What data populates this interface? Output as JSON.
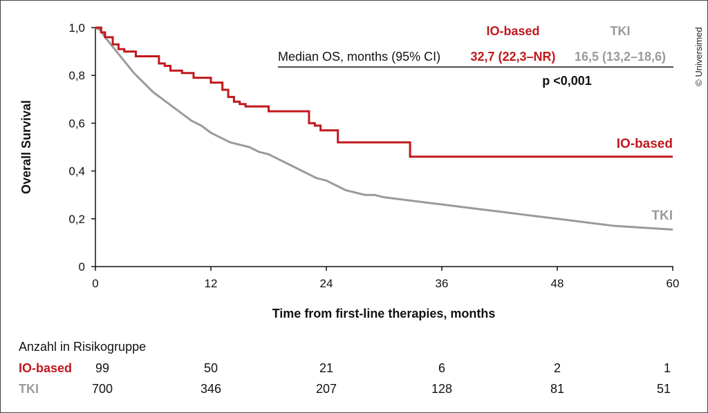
{
  "chart_data": {
    "type": "line",
    "subtype": "kaplan-meier",
    "xlabel": "Time from first-line therapies, months",
    "ylabel": "Overall Survival",
    "xlim": [
      0,
      60
    ],
    "ylim": [
      0,
      1
    ],
    "x_ticks": [
      0,
      12,
      24,
      36,
      48,
      60
    ],
    "x_tick_labels": [
      "0",
      "12",
      "24",
      "36",
      "48",
      "60"
    ],
    "y_ticks": [
      0,
      0.2,
      0.4,
      0.6,
      0.8,
      1.0
    ],
    "y_tick_labels": [
      "0",
      "0,2",
      "0,4",
      "0,6",
      "0,8",
      "1,0"
    ],
    "grid": false,
    "colors": {
      "io": "#c0181d",
      "tki": "#9a9a9a"
    },
    "series": [
      {
        "name": "IO-based",
        "step": true,
        "x": [
          0,
          0.6,
          1.0,
          1.8,
          2.4,
          3.0,
          4.2,
          6.6,
          7.2,
          7.8,
          9.0,
          10.2,
          12.0,
          13.2,
          13.8,
          14.4,
          15.0,
          15.6,
          18.0,
          22.2,
          22.8,
          23.4,
          25.2,
          32.7,
          60
        ],
        "y": [
          1.0,
          0.98,
          0.96,
          0.93,
          0.91,
          0.9,
          0.88,
          0.85,
          0.84,
          0.82,
          0.81,
          0.79,
          0.77,
          0.74,
          0.71,
          0.69,
          0.68,
          0.67,
          0.65,
          0.6,
          0.59,
          0.57,
          0.52,
          0.46,
          0.46
        ]
      },
      {
        "name": "TKI",
        "step": false,
        "x": [
          0,
          0.5,
          1,
          2,
          3,
          4,
          5,
          6,
          7,
          8,
          9,
          10,
          11,
          12,
          13,
          14,
          15,
          16,
          17,
          18,
          19,
          20,
          21,
          22,
          23,
          24,
          25,
          26,
          27,
          28,
          29,
          30,
          32,
          34,
          36,
          38,
          40,
          42,
          44,
          46,
          48,
          50,
          52,
          54,
          56,
          58,
          60
        ],
        "y": [
          1.0,
          0.99,
          0.96,
          0.91,
          0.86,
          0.81,
          0.77,
          0.73,
          0.7,
          0.67,
          0.64,
          0.61,
          0.59,
          0.56,
          0.54,
          0.52,
          0.51,
          0.5,
          0.48,
          0.47,
          0.45,
          0.43,
          0.41,
          0.39,
          0.37,
          0.36,
          0.34,
          0.32,
          0.31,
          0.3,
          0.3,
          0.29,
          0.28,
          0.27,
          0.26,
          0.25,
          0.24,
          0.23,
          0.22,
          0.21,
          0.2,
          0.19,
          0.18,
          0.17,
          0.165,
          0.16,
          0.155
        ]
      }
    ],
    "curve_labels": {
      "io": "IO-based",
      "tki": "TKI"
    },
    "legend_table": {
      "header_io": "IO-based",
      "header_tki": "TKI",
      "row_label": "Median OS, months (95% CI)",
      "io_value": "32,7 (22,3–NR)",
      "tki_value": "16,5 (13,2–18,6)",
      "p_value": "p <0,001"
    },
    "risk_table": {
      "title": "Anzahl in Risikogruppe",
      "times": [
        0,
        12,
        24,
        36,
        48,
        60
      ],
      "rows": [
        {
          "name": "IO-based",
          "values": [
            "99",
            "50",
            "21",
            "6",
            "2",
            "1"
          ]
        },
        {
          "name": "TKI",
          "values": [
            "700",
            "346",
            "207",
            "128",
            "81",
            "51"
          ]
        }
      ]
    }
  },
  "copyright": "© Universimed"
}
